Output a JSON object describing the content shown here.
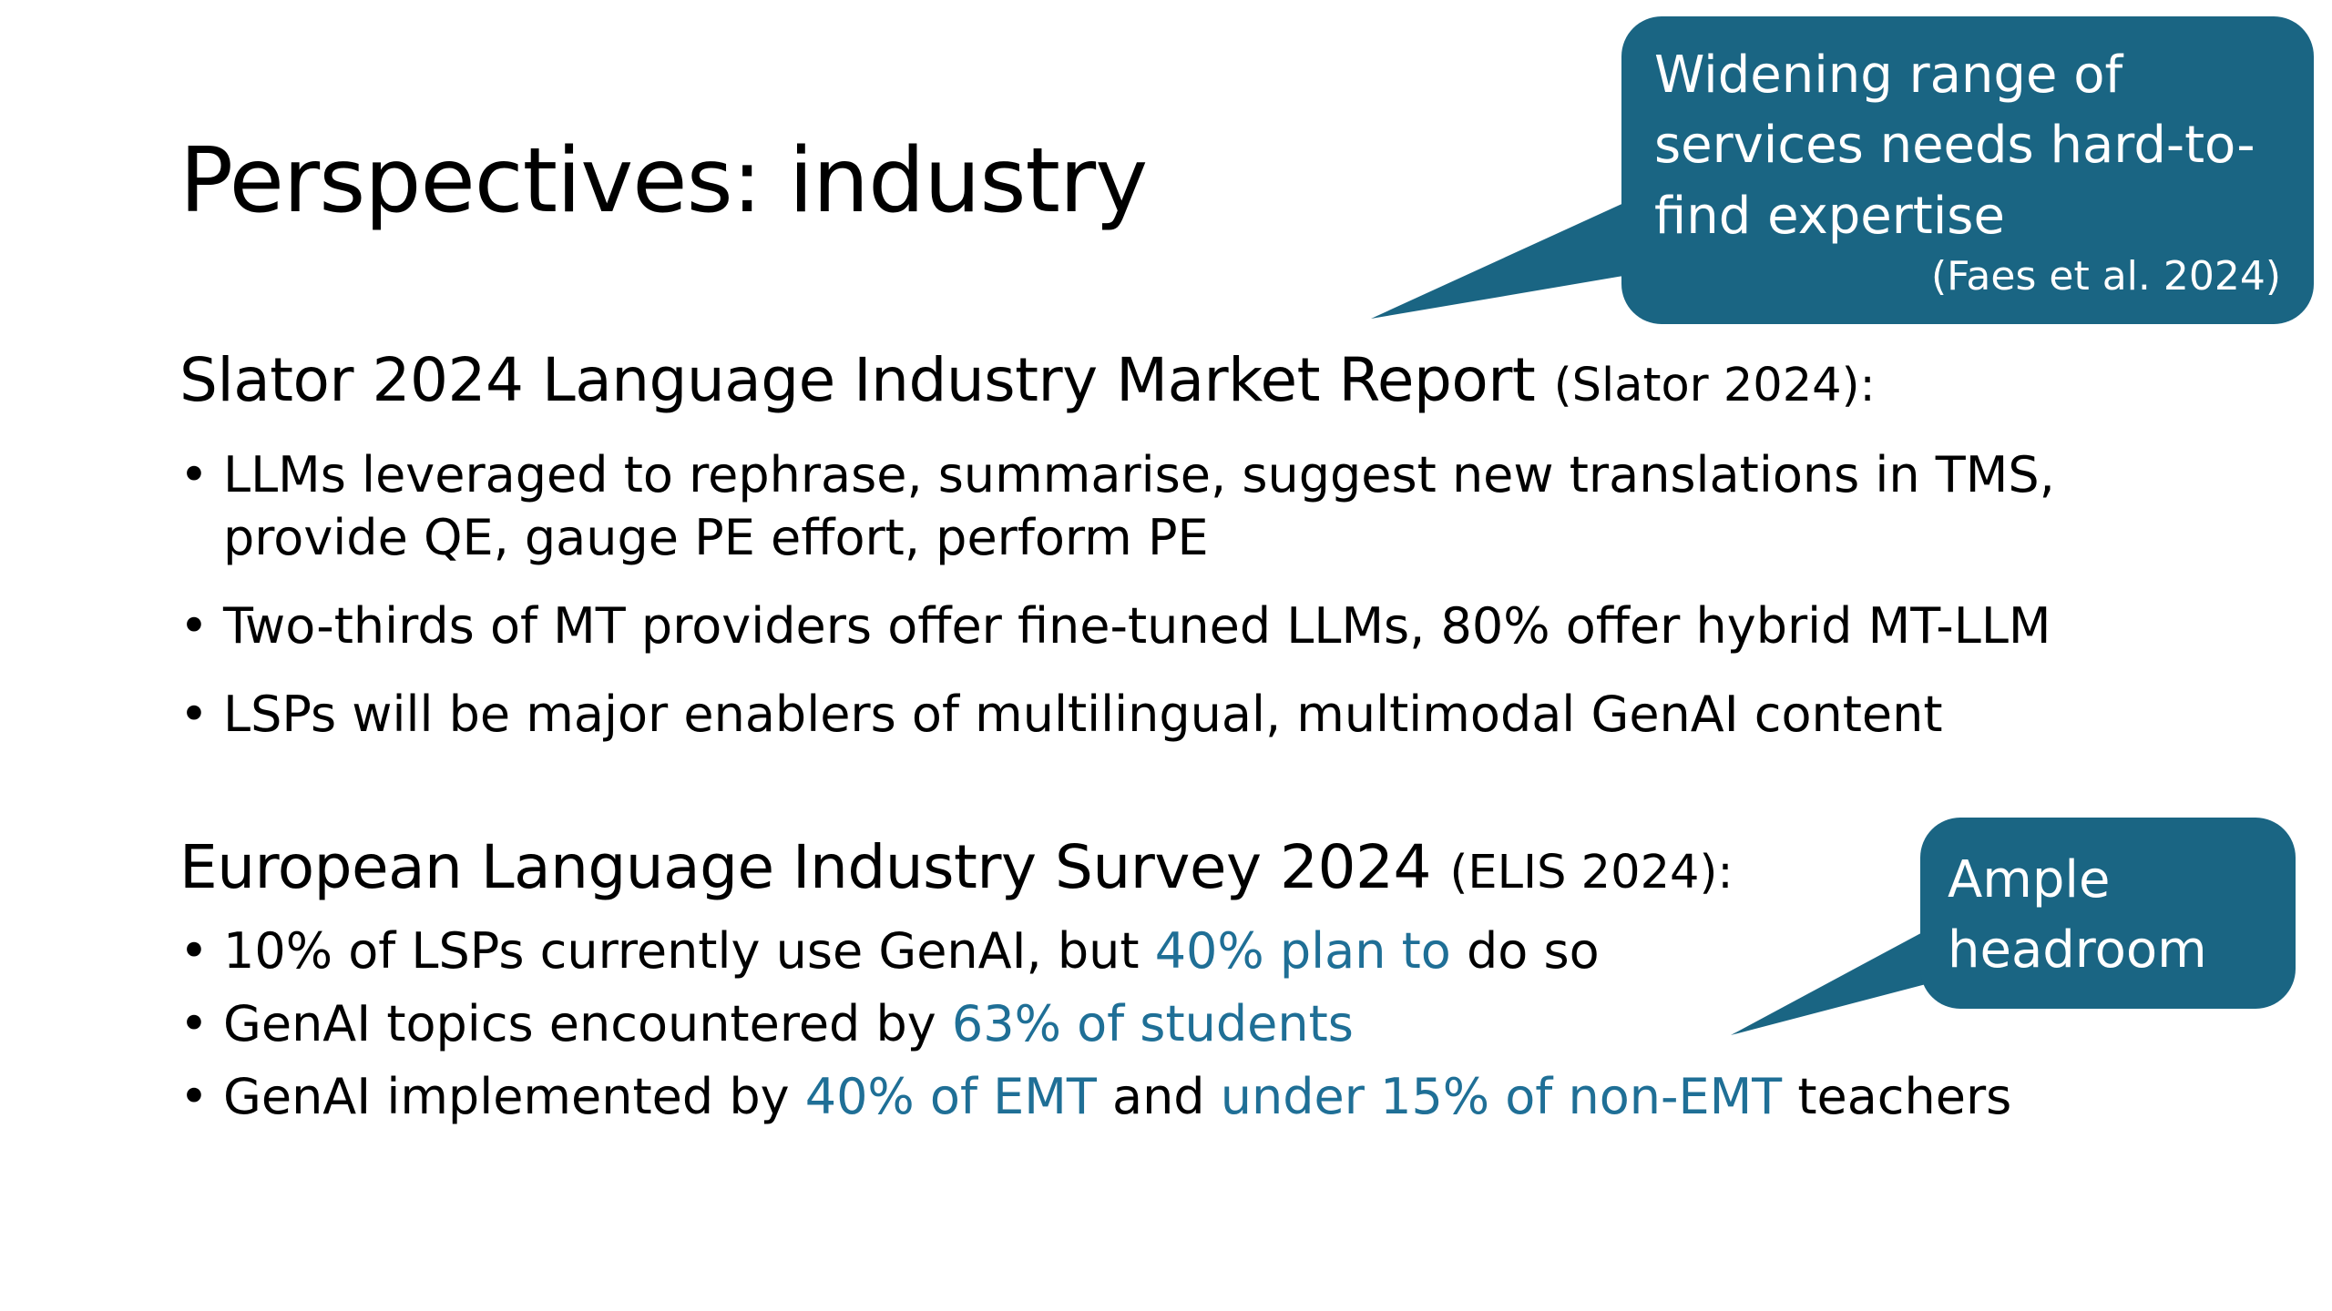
{
  "slide": {
    "title": "Perspectives: industry"
  },
  "section1": {
    "heading": "Slator 2024 Language Industry Market Report ",
    "source": "(Slator 2024):",
    "bullets": [
      {
        "text": "LLMs leveraged to rephrase, summarise, suggest new translations in TMS,"
      },
      {
        "text": "provide QE, gauge PE effort, perform PE"
      },
      {
        "text": "Two-thirds of MT providers offer fine-tuned LLMs, 80% offer hybrid MT-LLM"
      },
      {
        "text": "LSPs will be major enablers of multilingual, multimodal GenAI content"
      }
    ]
  },
  "section2": {
    "heading": "European Language Industry Survey 2024 ",
    "source": "(ELIS 2024):",
    "bullets": [
      {
        "a": "10% of LSPs currently use GenAI, but ",
        "hl": "40% plan to",
        "b": " do so"
      },
      {
        "a": "GenAI topics encountered by ",
        "hl": "63% of students",
        "b": ""
      },
      {
        "a": "GenAI implemented by ",
        "hl": "40% of EMT",
        "b": " and ",
        "hl2": "under 15% of non-EMT",
        "c": " teachers"
      }
    ]
  },
  "callouts": {
    "expertise": {
      "text": "Widening range of\nservices needs hard-to-\nfind expertise",
      "citation": "(Faes et al. 2024)"
    },
    "headroom": {
      "text": "Ample\nheadroom"
    }
  },
  "colors": {
    "callout_fill": "#1a6583",
    "highlight_text": "#1f6f96"
  }
}
